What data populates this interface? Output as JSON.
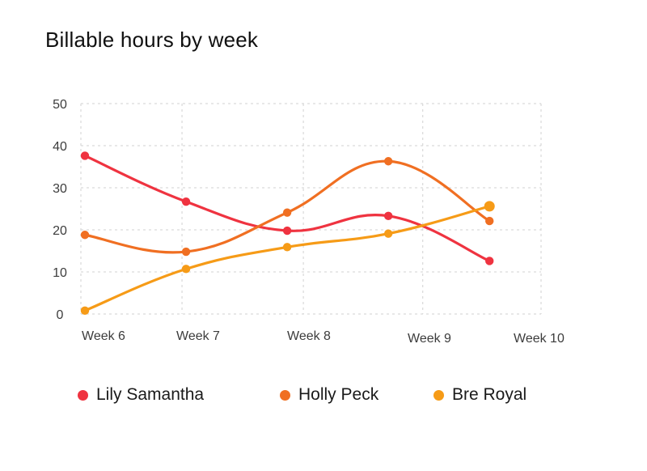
{
  "chart_data": {
    "type": "line",
    "title": "Billable hours by week",
    "xlabel": "",
    "ylabel": "",
    "ylim": [
      0,
      50
    ],
    "yticks": [
      0,
      10,
      20,
      30,
      40,
      50
    ],
    "x_tick_labels": [
      "Week 6",
      "Week 7",
      "Week 8",
      "Week 9",
      "Week 10"
    ],
    "legend_position": "bottom",
    "grid": true,
    "series": [
      {
        "name": "Lily Samantha",
        "color": "#ef3340",
        "points": [
          {
            "x": 0.0,
            "y": 37.6
          },
          {
            "x": 1.0,
            "y": 26.7
          },
          {
            "x": 2.0,
            "y": 19.8
          },
          {
            "x": 3.0,
            "y": 23.3
          },
          {
            "x": 4.0,
            "y": 12.6
          }
        ]
      },
      {
        "name": "Holly Peck",
        "color": "#f06f22",
        "points": [
          {
            "x": 0.0,
            "y": 18.8
          },
          {
            "x": 1.0,
            "y": 14.8
          },
          {
            "x": 2.0,
            "y": 24.1
          },
          {
            "x": 3.0,
            "y": 36.3
          },
          {
            "x": 4.0,
            "y": 22.1
          }
        ]
      },
      {
        "name": "Bre Royal",
        "color": "#f69b17",
        "points": [
          {
            "x": 0.0,
            "y": 0.8
          },
          {
            "x": 1.0,
            "y": 10.7
          },
          {
            "x": 2.0,
            "y": 15.9
          },
          {
            "x": 3.0,
            "y": 19.1
          },
          {
            "x": 4.0,
            "y": 25.6
          }
        ]
      }
    ]
  }
}
